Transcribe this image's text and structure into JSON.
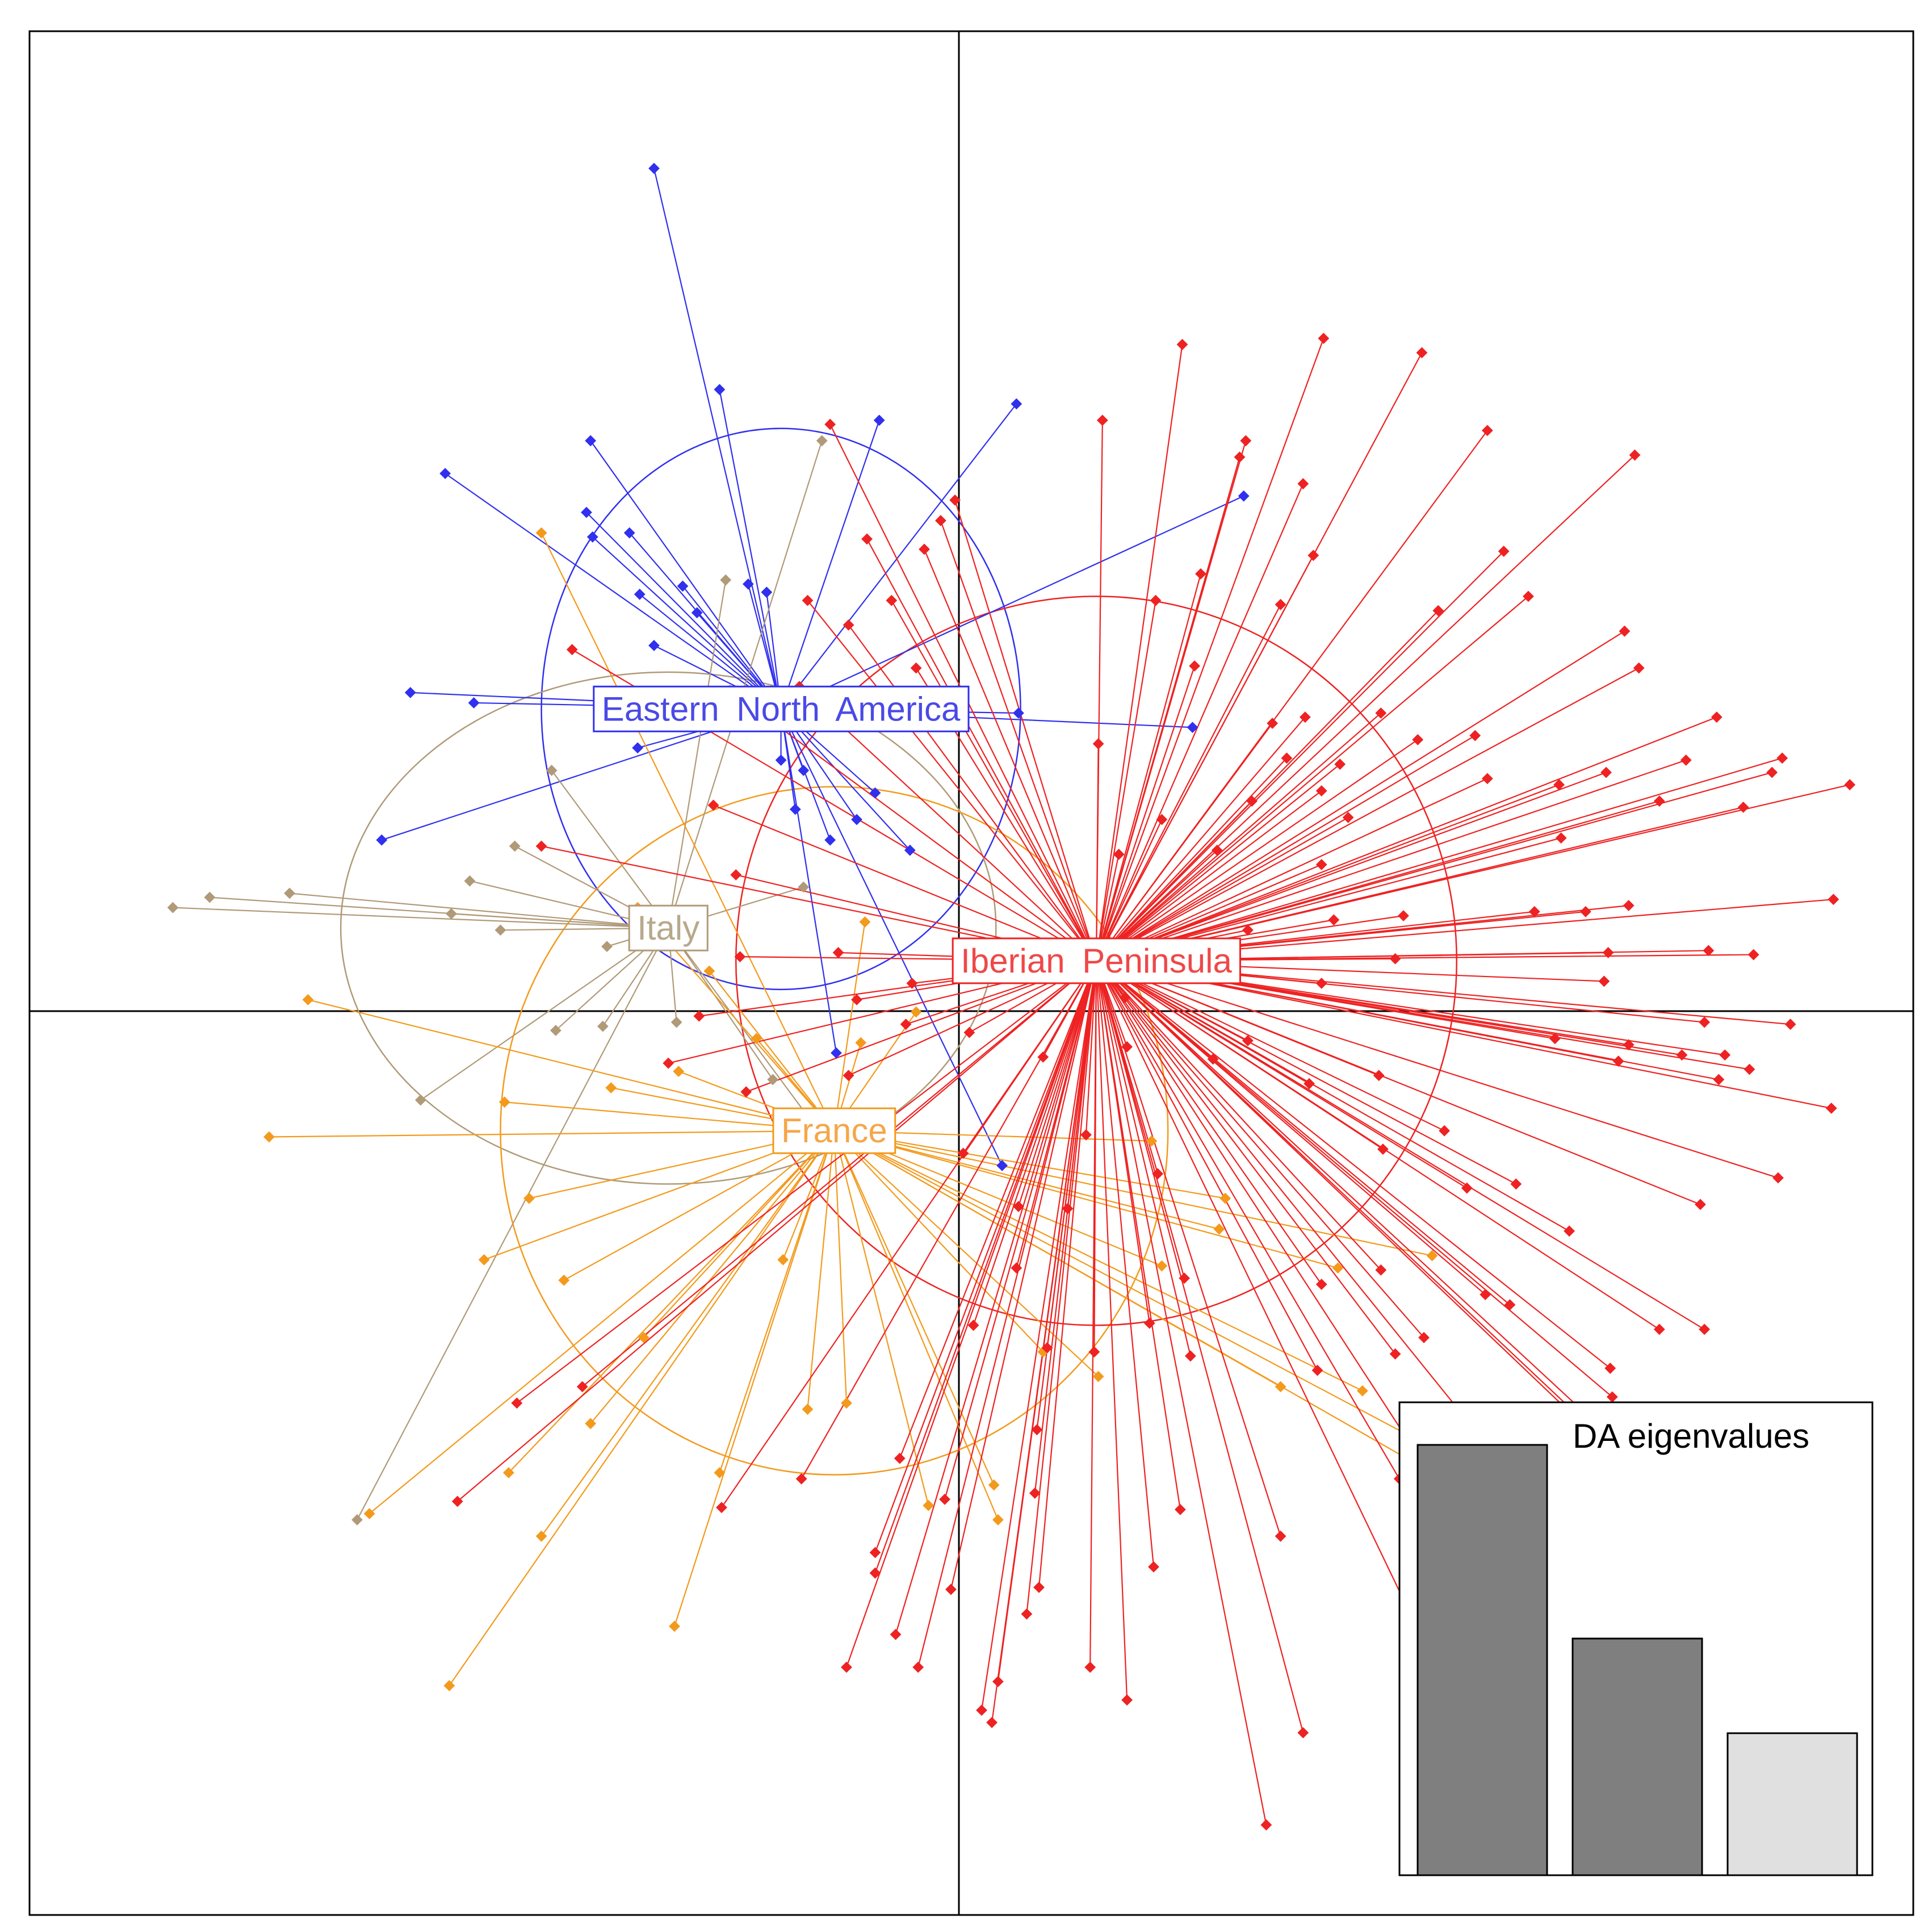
{
  "chart_data": {
    "type": "scatter",
    "title": "",
    "xlabel": "",
    "ylabel": "",
    "xlim": [
      -4.6,
      4.6
    ],
    "ylim": [
      -4.6,
      4.6
    ],
    "axes_at_origin": true,
    "grid": false,
    "colors": {
      "Eastern North America": "#3030ee",
      "Italy": "#b09a78",
      "France": "#f39a1c",
      "Iberian Peninsula": "#ee2222"
    },
    "groups": [
      {
        "name": "Eastern North America",
        "centroid": [
          -0.93,
          1.29
        ],
        "ellipse_radius": [
          1.17,
          1.37
        ],
        "points": [
          [
            -1.55,
            3.93
          ],
          [
            -1.23,
            2.85
          ],
          [
            -0.45,
            2.7
          ],
          [
            0.22,
            2.78
          ],
          [
            -1.86,
            2.6
          ],
          [
            -2.57,
            2.44
          ],
          [
            -1.88,
            2.25
          ],
          [
            -1.85,
            2.13
          ],
          [
            -1.67,
            2.15
          ],
          [
            -1.62,
            1.85
          ],
          [
            -1.41,
            1.89
          ],
          [
            -1.09,
            1.9
          ],
          [
            -1.0,
            1.86
          ],
          [
            -1.55,
            1.6
          ],
          [
            -1.34,
            1.76
          ],
          [
            -2.74,
            1.37
          ],
          [
            -2.43,
            1.32
          ],
          [
            0.23,
            1.27
          ],
          [
            1.08,
            1.2
          ],
          [
            1.33,
            2.33
          ],
          [
            -1.63,
            1.1
          ],
          [
            -0.93,
            1.04
          ],
          [
            -0.82,
            0.99
          ],
          [
            -0.86,
            0.8
          ],
          [
            -0.47,
            0.88
          ],
          [
            -0.56,
            0.75
          ],
          [
            -2.88,
            0.65
          ],
          [
            -0.69,
            0.65
          ],
          [
            -0.3,
            0.6
          ],
          [
            -0.66,
            -0.39
          ],
          [
            0.15,
            -0.94
          ]
        ]
      },
      {
        "name": "Italy",
        "centroid": [
          -1.48,
          0.22
        ],
        "ellipse_radius": [
          1.6,
          1.25
        ],
        "points": [
          [
            -0.73,
            2.6
          ],
          [
            -1.2,
            1.92
          ],
          [
            -2.05,
            0.99
          ],
          [
            -2.23,
            0.62
          ],
          [
            -2.45,
            0.45
          ],
          [
            -3.33,
            0.39
          ],
          [
            -3.72,
            0.37
          ],
          [
            -3.9,
            0.32
          ],
          [
            -2.54,
            0.29
          ],
          [
            -2.3,
            0.21
          ],
          [
            -1.78,
            0.13
          ],
          [
            -1.44,
            -0.24
          ],
          [
            -1.8,
            -0.26
          ],
          [
            -2.03,
            -0.28
          ],
          [
            -2.69,
            -0.62
          ],
          [
            -0.97,
            -0.52
          ],
          [
            -0.71,
            -0.82
          ],
          [
            -3.0,
            -2.67
          ],
          [
            -1.49,
            0.25
          ],
          [
            -0.82,
            0.42
          ]
        ]
      },
      {
        "name": "France",
        "centroid": [
          -0.67,
          -0.77
        ],
        "ellipse_radius": [
          1.63,
          1.68
        ],
        "points": [
          [
            -2.1,
            2.15
          ],
          [
            -1.63,
            0.32
          ],
          [
            -1.28,
            0.01
          ],
          [
            -1.05,
            -0.32
          ],
          [
            -0.54,
            -0.34
          ],
          [
            -1.43,
            -0.48
          ],
          [
            -1.76,
            -0.56
          ],
          [
            -2.28,
            -0.63
          ],
          [
            -3.24,
            -0.13
          ],
          [
            -3.43,
            -0.8
          ],
          [
            -2.16,
            -1.1
          ],
          [
            -2.38,
            -1.4
          ],
          [
            -1.99,
            -1.5
          ],
          [
            -1.6,
            -1.78
          ],
          [
            -1.86,
            -2.2
          ],
          [
            -2.26,
            -2.44
          ],
          [
            -2.94,
            -2.64
          ],
          [
            -2.1,
            -2.75
          ],
          [
            -1.23,
            -2.44
          ],
          [
            -0.92,
            -1.4
          ],
          [
            -0.8,
            -2.13
          ],
          [
            -0.61,
            -2.1
          ],
          [
            -0.21,
            -2.6
          ],
          [
            0.11,
            -2.5
          ],
          [
            0.35,
            -1.85
          ],
          [
            0.62,
            -1.97
          ],
          [
            0.93,
            -1.43
          ],
          [
            1.21,
            -1.25
          ],
          [
            1.51,
            -2.02
          ],
          [
            1.79,
            -1.44
          ],
          [
            2.25,
            -1.38
          ],
          [
            2.31,
            -2.35
          ],
          [
            2.65,
            -2.67
          ],
          [
            1.91,
            -2.04
          ],
          [
            0.13,
            -2.67
          ],
          [
            -2.55,
            -3.48
          ],
          [
            -1.45,
            -3.19
          ],
          [
            -0.52,
            0.25
          ],
          [
            -0.27,
            -0.19
          ],
          [
            0.88,
            -0.82
          ],
          [
            1.24,
            -1.1
          ]
        ]
      },
      {
        "name": "Iberian Peninsula",
        "centroid": [
          0.61,
          0.06
        ],
        "ellipse_radius": [
          1.76,
          1.78
        ],
        "points": [
          [
            0.64,
            2.7
          ],
          [
            1.34,
            2.6
          ],
          [
            2.52,
            2.65
          ],
          [
            3.24,
            2.53
          ],
          [
            2.6,
            2.06
          ],
          [
            2.28,
            1.77
          ],
          [
            2.72,
            1.84
          ],
          [
            3.19,
            1.67
          ],
          [
            3.26,
            1.49
          ],
          [
            3.64,
            1.25
          ],
          [
            3.49,
            1.04
          ],
          [
            3.96,
            1.05
          ],
          [
            3.91,
            0.98
          ],
          [
            3.1,
            0.98
          ],
          [
            2.87,
            0.92
          ],
          [
            3.36,
            0.84
          ],
          [
            3.77,
            0.81
          ],
          [
            4.29,
            0.92
          ],
          [
            2.88,
            0.66
          ],
          [
            4.21,
            0.36
          ],
          [
            3.21,
            0.33
          ],
          [
            2.75,
            0.3
          ],
          [
            3.0,
            0.3
          ],
          [
            3.11,
            0.1
          ],
          [
            3.6,
            0.11
          ],
          [
            3.82,
            0.09
          ],
          [
            2.07,
            0.07
          ],
          [
            3.09,
            -0.04
          ],
          [
            3.58,
            -0.24
          ],
          [
            4.0,
            -0.25
          ],
          [
            2.85,
            -0.32
          ],
          [
            3.21,
            -0.35
          ],
          [
            3.16,
            -0.43
          ],
          [
            3.47,
            -0.4
          ],
          [
            3.68,
            -0.4
          ],
          [
            3.65,
            -0.52
          ],
          [
            3.8,
            -0.47
          ],
          [
            4.2,
            -0.66
          ],
          [
            3.94,
            -1.0
          ],
          [
            3.56,
            -1.13
          ],
          [
            2.66,
            -1.03
          ],
          [
            2.92,
            -1.26
          ],
          [
            2.51,
            -1.57
          ],
          [
            2.63,
            -1.62
          ],
          [
            2.21,
            -1.78
          ],
          [
            2.0,
            -1.45
          ],
          [
            1.71,
            -1.52
          ],
          [
            1.04,
            -1.49
          ],
          [
            3.12,
            -1.93
          ],
          [
            3.13,
            -2.07
          ],
          [
            3.58,
            -1.74
          ],
          [
            3.36,
            -1.74
          ],
          [
            3.02,
            -2.17
          ],
          [
            2.07,
            -1.86
          ],
          [
            1.69,
            -1.94
          ],
          [
            3.28,
            -2.46
          ],
          [
            3.81,
            -2.99
          ],
          [
            2.7,
            -2.53
          ],
          [
            2.32,
            -2.57
          ],
          [
            2.09,
            -2.47
          ],
          [
            1.51,
            -2.75
          ],
          [
            1.02,
            -2.62
          ],
          [
            0.89,
            -2.9
          ],
          [
            0.37,
            -1.83
          ],
          [
            0.32,
            -2.23
          ],
          [
            0.31,
            -2.54
          ],
          [
            -0.13,
            -2.57
          ],
          [
            -0.35,
            -2.37
          ],
          [
            -0.47,
            -2.83
          ],
          [
            -0.83,
            -2.47
          ],
          [
            -1.22,
            -2.61
          ],
          [
            0.1,
            -3.66
          ],
          [
            -0.61,
            -3.39
          ],
          [
            1.44,
            -4.16
          ],
          [
            1.62,
            -3.71
          ],
          [
            2.12,
            -3.08
          ],
          [
            0.76,
            -3.55
          ],
          [
            0.58,
            -3.39
          ],
          [
            0.13,
            -3.46
          ],
          [
            -0.1,
            -3.01
          ],
          [
            0.27,
            -3.13
          ],
          [
            -0.37,
            -3.23
          ],
          [
            0.05,
            -3.6
          ],
          [
            -0.26,
            -3.39
          ],
          [
            -0.47,
            -2.93
          ],
          [
            0.33,
            -3.0
          ],
          [
            -1.9,
            -2.02
          ],
          [
            -2.22,
            -2.1
          ],
          [
            -2.51,
            -2.58
          ],
          [
            1.03,
            3.07
          ],
          [
            1.72,
            3.1
          ],
          [
            2.2,
            3.03
          ],
          [
            1.31,
            2.52
          ],
          [
            1.62,
            2.39
          ],
          [
            1.67,
            2.04
          ],
          [
            1.51,
            1.8
          ],
          [
            1.12,
            1.95
          ],
          [
            0.9,
            1.82
          ],
          [
            1.09,
            1.5
          ],
          [
            1.47,
            1.22
          ],
          [
            0.62,
            1.12
          ],
          [
            0.93,
            0.75
          ],
          [
            0.72,
            0.58
          ],
          [
            1.2,
            0.6
          ],
          [
            -0.69,
            2.68
          ],
          [
            -0.51,
            2.12
          ],
          [
            -0.08,
            2.31
          ],
          [
            -0.15,
            2.21
          ],
          [
            -0.27,
            1.49
          ],
          [
            -0.23,
            2.07
          ],
          [
            -0.39,
            1.82
          ],
          [
            -0.8,
            1.82
          ],
          [
            -0.6,
            1.7
          ],
          [
            -0.84,
            1.4
          ],
          [
            -1.18,
            1.38
          ],
          [
            -1.95,
            1.58
          ],
          [
            -2.1,
            0.62
          ],
          [
            -1.26,
            0.82
          ],
          [
            -1.15,
            0.48
          ],
          [
            -1.13,
            0.08
          ],
          [
            -0.65,
            0.1
          ],
          [
            -0.56,
            -0.13
          ],
          [
            -0.32,
            -0.25
          ],
          [
            -1.33,
            -0.21
          ],
          [
            -1.48,
            -0.44
          ],
          [
            -1.1,
            -0.58
          ],
          [
            -0.6,
            -0.5
          ],
          [
            -0.29,
            -0.05
          ],
          [
            -0.01,
            -0.29
          ],
          [
            0.35,
            -0.41
          ],
          [
            -0.04,
            -0.88
          ],
          [
            0.56,
            -0.79
          ],
          [
            0.75,
            -0.12
          ],
          [
            0.76,
            -0.36
          ],
          [
            1.18,
            -0.42
          ],
          [
            0.91,
            -0.98
          ],
          [
            0.47,
            -1.15
          ],
          [
            0.22,
            -1.44
          ],
          [
            0.01,
            -1.72
          ],
          [
            0.23,
            -1.14
          ],
          [
            0.87,
            -1.71
          ],
          [
            1.07,
            -1.87
          ],
          [
            0.6,
            -1.85
          ],
          [
            1.35,
            -0.33
          ],
          [
            1.65,
            -0.54
          ],
          [
            1.99,
            -0.5
          ],
          [
            2.01,
            -0.86
          ],
          [
            2.42,
            -1.05
          ],
          [
            2.31,
            -0.77
          ],
          [
            1.71,
            -0.05
          ],
          [
            1.77,
            0.26
          ],
          [
            1.71,
            0.53
          ],
          [
            1.54,
            1.05
          ],
          [
            1.37,
            0.84
          ],
          [
            1.71,
            0.89
          ],
          [
            1.63,
            1.25
          ],
          [
            2.0,
            1.27
          ],
          [
            2.18,
            1.14
          ],
          [
            1.8,
            1.02
          ],
          [
            1.84,
            0.76
          ],
          [
            2.52,
            0.95
          ],
          [
            2.46,
            1.16
          ],
          [
            2.11,
            0.28
          ],
          [
            1.35,
            0.21
          ]
        ]
      }
    ],
    "inset": {
      "title": "DA eigenvalues",
      "type": "bar",
      "values": [
        100,
        55,
        33
      ],
      "retained": [
        true,
        true,
        false
      ]
    }
  }
}
